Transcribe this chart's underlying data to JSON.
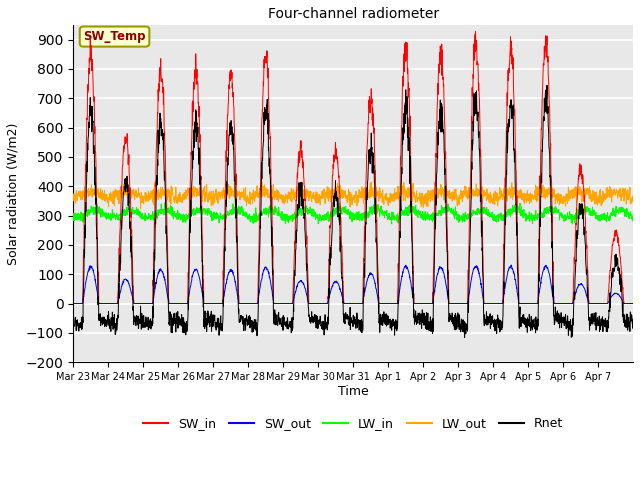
{
  "title": "Four-channel radiometer",
  "xlabel": "Time",
  "ylabel": "Solar radiation (W/m2)",
  "ylim": [
    -200,
    950
  ],
  "yticks": [
    -200,
    -100,
    0,
    100,
    200,
    300,
    400,
    500,
    600,
    700,
    800,
    900
  ],
  "bg_color": "#e8e8e8",
  "grid_color": "white",
  "annotation_text": "SW_Temp",
  "annotation_bbox": {
    "facecolor": "#ffffcc",
    "edgecolor": "#999900",
    "boxstyle": "round,pad=0.3"
  },
  "annotation_textcolor": "#8b0000",
  "colors": {
    "SW_in": "red",
    "SW_out": "blue",
    "LW_in": "#00ff00",
    "LW_out": "orange",
    "Rnet": "black"
  },
  "n_days": 16,
  "x_tick_labels": [
    "Mar 23",
    "Mar 24",
    "Mar 25",
    "Mar 26",
    "Mar 27",
    "Mar 28",
    "Mar 29",
    "Mar 30",
    "Mar 31",
    "Apr 1",
    "Apr 2",
    "Apr 3",
    "Apr 4",
    "Apr 5",
    "Apr 6",
    "Apr 7"
  ],
  "sw_in_peaks": [
    860,
    570,
    790,
    800,
    780,
    840,
    530,
    520,
    700,
    870,
    855,
    880,
    870,
    880,
    460,
    240
  ],
  "figsize": [
    6.4,
    4.8
  ],
  "dpi": 100
}
